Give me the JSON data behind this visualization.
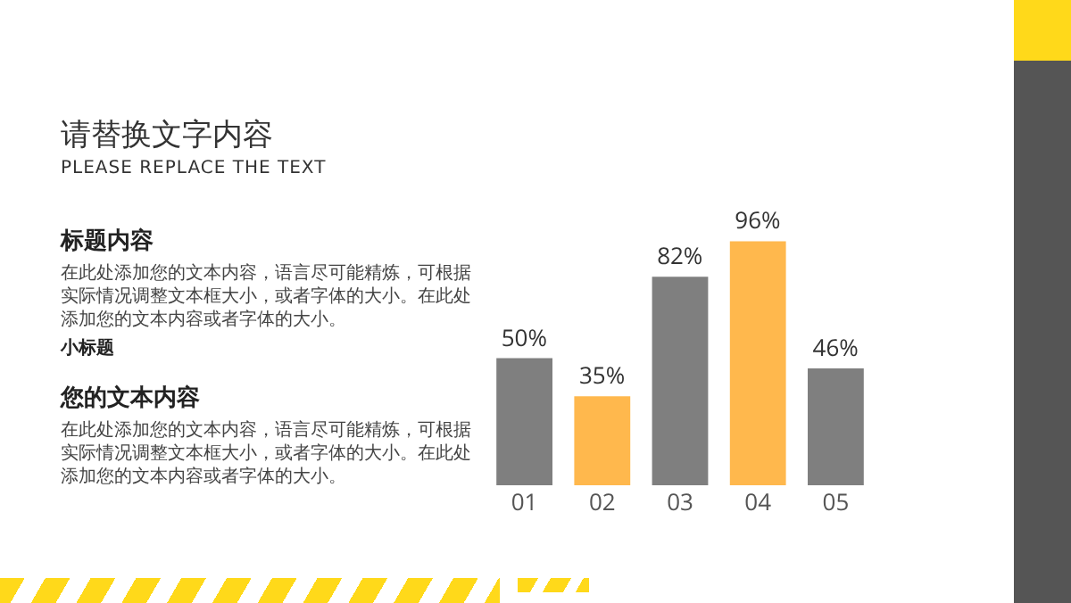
{
  "chart_data": {
    "type": "bar",
    "title": "请替换文字内容",
    "subtitle": "PLEASE REPLACE THE TEXT",
    "categories": [
      "01",
      "02",
      "03",
      "04",
      "05"
    ],
    "values": [
      50,
      35,
      82,
      96,
      46
    ],
    "colors": [
      "#7f7f7f",
      "#ffb84d",
      "#7f7f7f",
      "#ffb84d",
      "#7f7f7f"
    ],
    "value_labels": [
      "50%",
      "35%",
      "82%",
      "96%",
      "46%"
    ],
    "tick_labels": "x",
    "grid": false,
    "annotations": [
      "标题内容",
      "在此处添加您的文本内容，语言尽可能精炼，可根据实际情况调整文本框大小，或者字体的大小。在此处添加您的文本内容或者字体的大小。",
      "小标题",
      "您的文本内容",
      "在此处添加您的文本内容，语言尽可能精炼，可根据实际情况调整文本框大小，或者字体的大小。在此处添加您的文本内容或者字体的大小。"
    ]
  }
}
